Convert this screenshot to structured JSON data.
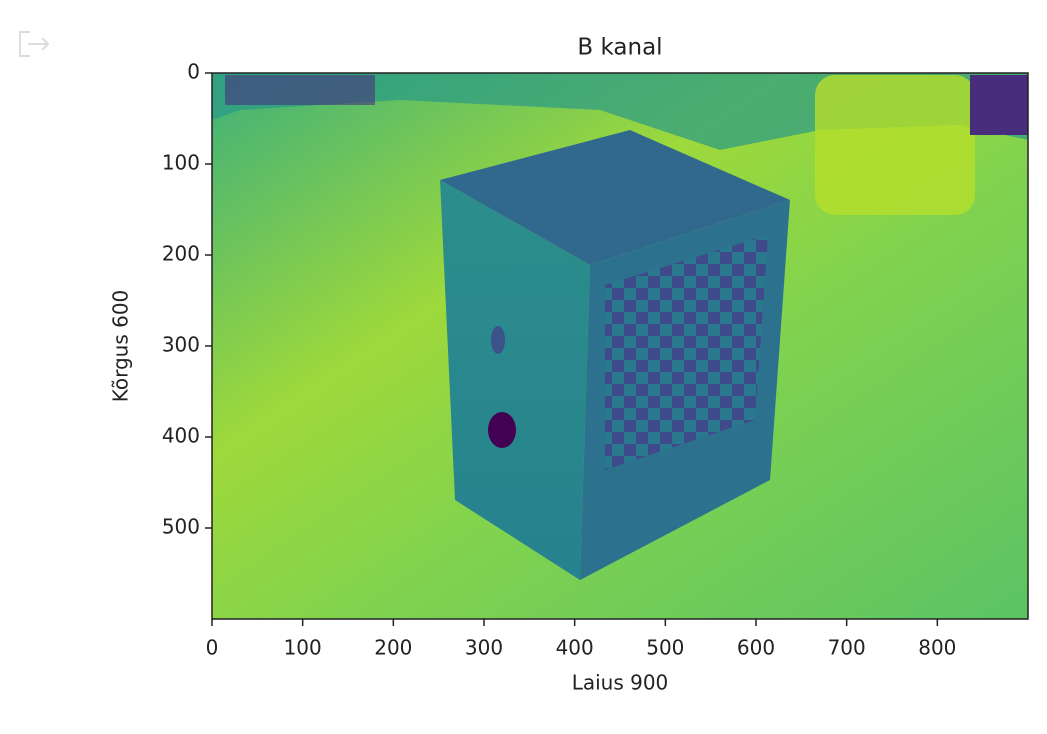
{
  "chart_data": {
    "type": "image",
    "title": "B kanal",
    "x_label": "Laius 900",
    "y_label": "Kõrgus 600",
    "xlim": [
      0,
      900
    ],
    "ylim": [
      600,
      0
    ],
    "xticks": [
      0,
      100,
      200,
      300,
      400,
      500,
      600,
      700,
      800
    ],
    "yticks": [
      0,
      100,
      200,
      300,
      400,
      500
    ]
  }
}
